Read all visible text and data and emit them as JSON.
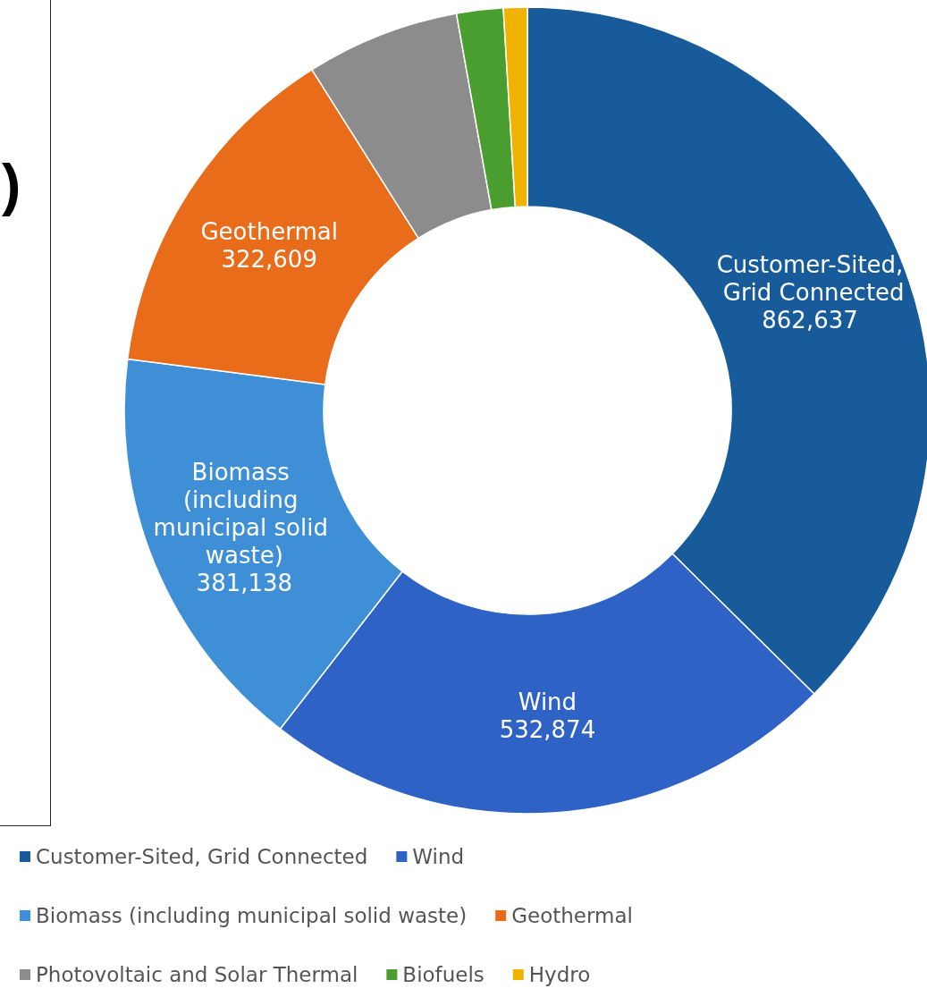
{
  "chart_data": {
    "type": "donut",
    "categories": [
      "Customer-Sited, Grid Connected",
      "Wind",
      "Biomass (including municipal solid waste)",
      "Geothermal",
      "Photovoltaic and Solar Thermal",
      "Biofuels",
      "Hydro"
    ],
    "values": [
      862637,
      532874,
      381138,
      322609,
      142000,
      43000,
      22000
    ],
    "value_labels": [
      "862,637",
      "532,874",
      "381,138",
      "322,609",
      null,
      null,
      null
    ],
    "colors": [
      "#175b9a",
      "#2e62c4",
      "#3f8fd6",
      "#e86c1a",
      "#8c8c8c",
      "#4a9e2f",
      "#f0b400"
    ],
    "legend": "bottom",
    "annotations": [
      ")"
    ]
  }
}
